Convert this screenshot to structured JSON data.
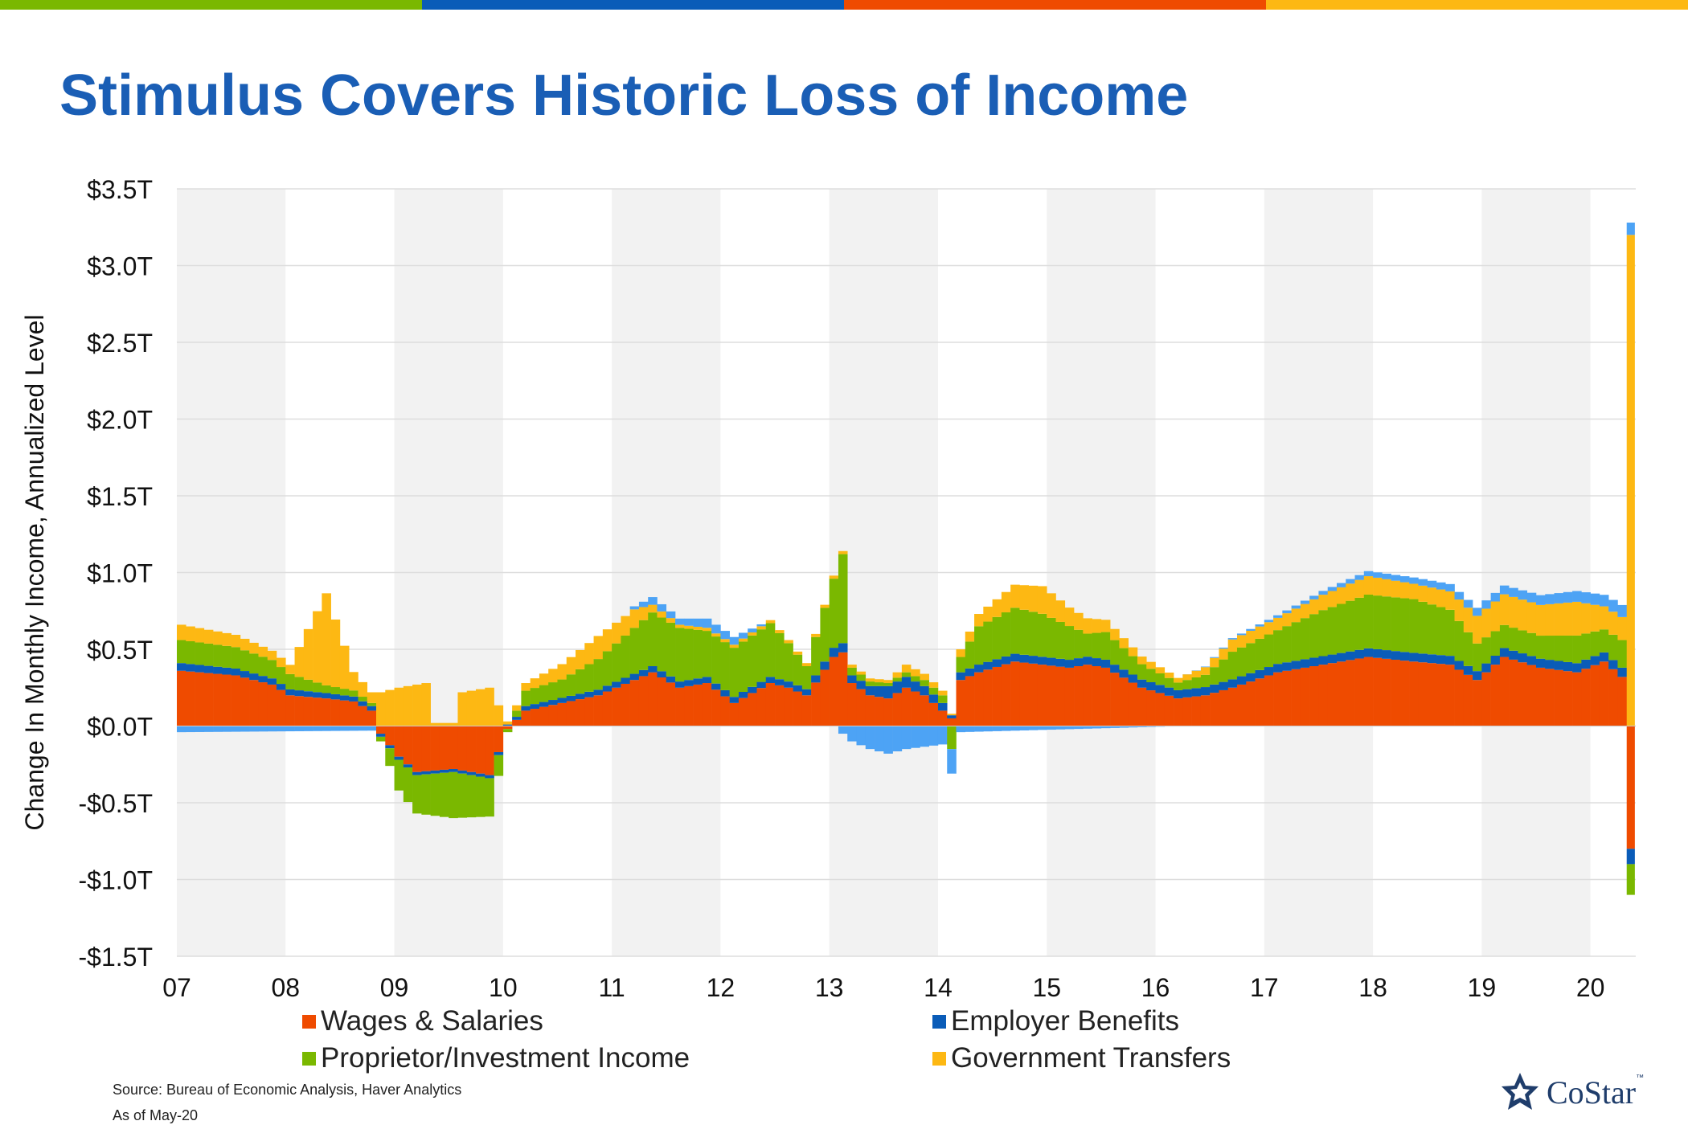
{
  "title": "Stimulus Covers Historic Loss of Income",
  "source_line1": "Source: Bureau of Economic Analysis, Haver Analytics",
  "source_line2": "As of May-20",
  "brand": "CoStar",
  "brand_tm": "™",
  "colors": {
    "top_bar": [
      "#7ab800",
      "#0a5cb8",
      "#ef4b00",
      "#fdb813"
    ],
    "title": "#1a5eb5",
    "wages": "#ef4b00",
    "benefits": "#0a5cb8",
    "proprietor": "#7ab800",
    "transfers": "#fdb813",
    "other": "#4da3f5",
    "band": "#f2f2f2",
    "grid": "#dddddd"
  },
  "chart_data": {
    "type": "bar",
    "stacked": true,
    "title": "Stimulus Covers Historic Loss of Income",
    "ylabel": "Change In Monthly Income, Annualized Level",
    "xlabel": "",
    "ylim": [
      -1.5,
      3.5
    ],
    "yticks": [
      -1.5,
      -1.0,
      -0.5,
      0.0,
      0.5,
      1.0,
      1.5,
      2.0,
      2.5,
      3.0,
      3.5
    ],
    "ytick_labels": [
      "-$1.5T",
      "-$1.0T",
      "-$0.5T",
      "$0.0T",
      "$0.5T",
      "$1.0T",
      "$1.5T",
      "$2.0T",
      "$2.5T",
      "$3.0T",
      "$3.5T"
    ],
    "xtick_labels": [
      "07",
      "08",
      "09",
      "10",
      "11",
      "12",
      "13",
      "14",
      "15",
      "16",
      "17",
      "18",
      "19",
      "20"
    ],
    "x_start": "2007-01",
    "grid": true,
    "alternating_year_bands": true,
    "legend_position": "bottom",
    "legend": [
      "Wages & Salaries",
      "Employer Benefits",
      "Proprietor/Investment Income",
      "Government Transfers"
    ],
    "series": [
      {
        "name": "Wages & Salaries",
        "color": "#ef4b00",
        "keyframes": [
          [
            0,
            0.36
          ],
          [
            6,
            0.33
          ],
          [
            10,
            0.27
          ],
          [
            12,
            0.2
          ],
          [
            16,
            0.18
          ],
          [
            19,
            0.16
          ],
          [
            21,
            0.1
          ],
          [
            22,
            -0.05
          ],
          [
            24,
            -0.2
          ],
          [
            26,
            -0.3
          ],
          [
            30,
            -0.28
          ],
          [
            34,
            -0.32
          ],
          [
            36,
            -0.02
          ],
          [
            38,
            0.1
          ],
          [
            42,
            0.15
          ],
          [
            46,
            0.2
          ],
          [
            50,
            0.3
          ],
          [
            52,
            0.35
          ],
          [
            55,
            0.25
          ],
          [
            58,
            0.28
          ],
          [
            61,
            0.15
          ],
          [
            65,
            0.28
          ],
          [
            67,
            0.25
          ],
          [
            69,
            0.2
          ],
          [
            72,
            0.45
          ],
          [
            73,
            0.48
          ],
          [
            74,
            0.28
          ],
          [
            76,
            0.2
          ],
          [
            78,
            0.18
          ],
          [
            80,
            0.25
          ],
          [
            82,
            0.2
          ],
          [
            84,
            0.1
          ],
          [
            85,
            0.05
          ],
          [
            86,
            0.3
          ],
          [
            88,
            0.35
          ],
          [
            92,
            0.42
          ],
          [
            95,
            0.4
          ],
          [
            98,
            0.38
          ],
          [
            100,
            0.4
          ],
          [
            102,
            0.38
          ],
          [
            106,
            0.25
          ],
          [
            110,
            0.18
          ],
          [
            113,
            0.2
          ],
          [
            116,
            0.25
          ],
          [
            121,
            0.35
          ],
          [
            126,
            0.4
          ],
          [
            131,
            0.45
          ],
          [
            136,
            0.42
          ],
          [
            140,
            0.4
          ],
          [
            143,
            0.3
          ],
          [
            146,
            0.45
          ],
          [
            150,
            0.38
          ],
          [
            154,
            0.35
          ],
          [
            157,
            0.42
          ],
          [
            159,
            0.32
          ],
          [
            160,
            -0.8
          ]
        ]
      },
      {
        "name": "Employer Benefits",
        "color": "#0a5cb8",
        "keyframes": [
          [
            0,
            0.05
          ],
          [
            21,
            0.03
          ],
          [
            22,
            -0.02
          ],
          [
            35,
            -0.02
          ],
          [
            36,
            0.01
          ],
          [
            38,
            0.03
          ],
          [
            50,
            0.04
          ],
          [
            69,
            0.04
          ],
          [
            72,
            0.06
          ],
          [
            73,
            0.06
          ],
          [
            74,
            0.05
          ],
          [
            76,
            0.06
          ],
          [
            78,
            0.08
          ],
          [
            84,
            0.05
          ],
          [
            85,
            0.02
          ],
          [
            86,
            0.05
          ],
          [
            159,
            0.06
          ],
          [
            160,
            -0.1
          ]
        ]
      },
      {
        "name": "Proprietor/Investment Income",
        "color": "#7ab800",
        "keyframes": [
          [
            0,
            0.15
          ],
          [
            6,
            0.14
          ],
          [
            10,
            0.12
          ],
          [
            12,
            0.1
          ],
          [
            16,
            0.05
          ],
          [
            19,
            0.04
          ],
          [
            21,
            0.02
          ],
          [
            22,
            -0.03
          ],
          [
            24,
            -0.2
          ],
          [
            26,
            -0.25
          ],
          [
            30,
            -0.3
          ],
          [
            34,
            -0.25
          ],
          [
            36,
            -0.02
          ],
          [
            38,
            0.1
          ],
          [
            42,
            0.12
          ],
          [
            46,
            0.2
          ],
          [
            50,
            0.3
          ],
          [
            52,
            0.35
          ],
          [
            55,
            0.35
          ],
          [
            58,
            0.3
          ],
          [
            61,
            0.32
          ],
          [
            65,
            0.35
          ],
          [
            67,
            0.25
          ],
          [
            69,
            0.15
          ],
          [
            72,
            0.45
          ],
          [
            73,
            0.58
          ],
          [
            74,
            0.05
          ],
          [
            76,
            0.03
          ],
          [
            78,
            0.02
          ],
          [
            80,
            0.03
          ],
          [
            84,
            0.05
          ],
          [
            85,
            -0.15
          ],
          [
            86,
            0.1
          ],
          [
            88,
            0.25
          ],
          [
            92,
            0.3
          ],
          [
            95,
            0.28
          ],
          [
            98,
            0.22
          ],
          [
            100,
            0.15
          ],
          [
            102,
            0.18
          ],
          [
            106,
            0.1
          ],
          [
            110,
            0.05
          ],
          [
            113,
            0.08
          ],
          [
            116,
            0.18
          ],
          [
            121,
            0.22
          ],
          [
            126,
            0.3
          ],
          [
            131,
            0.35
          ],
          [
            136,
            0.35
          ],
          [
            140,
            0.3
          ],
          [
            143,
            0.18
          ],
          [
            146,
            0.15
          ],
          [
            150,
            0.15
          ],
          [
            154,
            0.18
          ],
          [
            157,
            0.15
          ],
          [
            159,
            0.18
          ],
          [
            160,
            -0.2
          ]
        ]
      },
      {
        "name": "Government Transfers",
        "color": "#fdb813",
        "keyframes": [
          [
            0,
            0.1
          ],
          [
            6,
            0.08
          ],
          [
            10,
            0.06
          ],
          [
            12,
            0.06
          ],
          [
            16,
            0.6
          ],
          [
            19,
            0.12
          ],
          [
            21,
            0.07
          ],
          [
            22,
            0.22
          ],
          [
            24,
            0.25
          ],
          [
            27,
            0.28
          ],
          [
            28,
            0.02
          ],
          [
            30,
            0.02
          ],
          [
            31,
            0.22
          ],
          [
            34,
            0.25
          ],
          [
            36,
            0.02
          ],
          [
            38,
            0.05
          ],
          [
            42,
            0.1
          ],
          [
            46,
            0.15
          ],
          [
            50,
            0.12
          ],
          [
            52,
            0.05
          ],
          [
            55,
            0.02
          ],
          [
            58,
            0.02
          ],
          [
            61,
            0.02
          ],
          [
            65,
            0.02
          ],
          [
            67,
            0.02
          ],
          [
            69,
            0.02
          ],
          [
            72,
            0.02
          ],
          [
            73,
            0.02
          ],
          [
            74,
            0.02
          ],
          [
            76,
            0.02
          ],
          [
            78,
            0.02
          ],
          [
            80,
            0.05
          ],
          [
            84,
            0.03
          ],
          [
            85,
            0.01
          ],
          [
            86,
            0.05
          ],
          [
            88,
            0.08
          ],
          [
            92,
            0.15
          ],
          [
            95,
            0.18
          ],
          [
            98,
            0.12
          ],
          [
            100,
            0.1
          ],
          [
            102,
            0.08
          ],
          [
            106,
            0.05
          ],
          [
            110,
            0.03
          ],
          [
            113,
            0.05
          ],
          [
            116,
            0.08
          ],
          [
            121,
            0.08
          ],
          [
            126,
            0.1
          ],
          [
            131,
            0.12
          ],
          [
            136,
            0.1
          ],
          [
            140,
            0.12
          ],
          [
            143,
            0.18
          ],
          [
            146,
            0.2
          ],
          [
            150,
            0.2
          ],
          [
            154,
            0.22
          ],
          [
            157,
            0.15
          ],
          [
            159,
            0.15
          ],
          [
            160,
            3.2
          ]
        ]
      },
      {
        "name": "",
        "color": "#4da3f5",
        "keyframes": [
          [
            0,
            -0.04
          ],
          [
            21,
            -0.03
          ],
          [
            22,
            0.0
          ],
          [
            49,
            0.0
          ],
          [
            50,
            0.02
          ],
          [
            52,
            0.05
          ],
          [
            55,
            0.04
          ],
          [
            58,
            0.06
          ],
          [
            61,
            0.05
          ],
          [
            65,
            0.0
          ],
          [
            72,
            0.0
          ],
          [
            74,
            -0.1
          ],
          [
            76,
            -0.15
          ],
          [
            78,
            -0.18
          ],
          [
            80,
            -0.15
          ],
          [
            84,
            -0.12
          ],
          [
            85,
            -0.16
          ],
          [
            86,
            -0.04
          ],
          [
            160,
            0.08
          ]
        ]
      }
    ]
  }
}
